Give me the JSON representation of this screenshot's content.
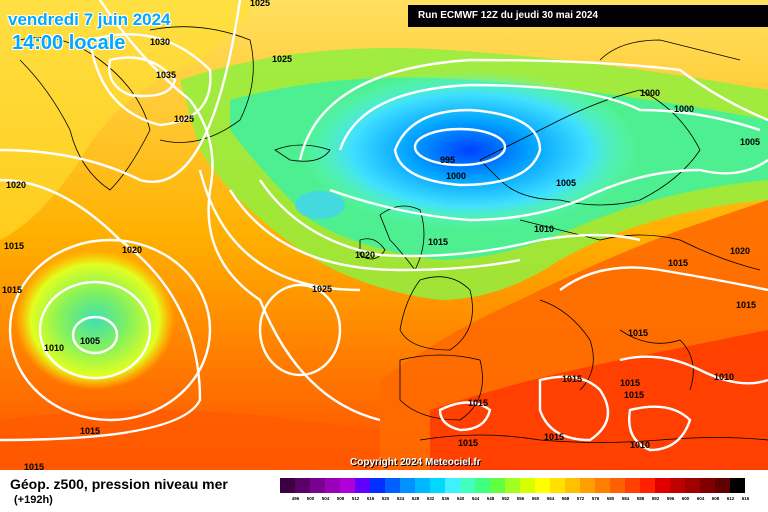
{
  "header": {
    "date": "vendredi 7 juin 2024",
    "time": "14:00 locale",
    "run": "Run ECMWF 12Z du jeudi 30 mai 2024"
  },
  "copyright": "Copyright 2024 Meteociel.fr",
  "footer": {
    "title": "Géop. z500, pression niveau mer",
    "subtitle": "(+192h)"
  },
  "legend": {
    "values": [
      "496",
      "500",
      "504",
      "508",
      "512",
      "516",
      "520",
      "524",
      "528",
      "532",
      "536",
      "540",
      "544",
      "548",
      "552",
      "556",
      "560",
      "564",
      "568",
      "572",
      "576",
      "580",
      "584",
      "588",
      "592",
      "596",
      "600",
      "604",
      "608",
      "612",
      "616"
    ],
    "colors": [
      "#3c0040",
      "#5a0068",
      "#7a0090",
      "#9a00b8",
      "#b000d8",
      "#6000ff",
      "#0030ff",
      "#0060ff",
      "#0090ff",
      "#00b8ff",
      "#00d8ff",
      "#40f0ff",
      "#40ffc0",
      "#40ff80",
      "#60ff40",
      "#a0ff20",
      "#d8ff00",
      "#ffff00",
      "#ffe000",
      "#ffc000",
      "#ffa000",
      "#ff8000",
      "#ff6000",
      "#ff4000",
      "#ff2000",
      "#e00000",
      "#c00000",
      "#a00000",
      "#800000",
      "#600000",
      "#000000"
    ]
  },
  "pressure_labels": [
    {
      "text": "1025"
    },
    {
      "text": "1030"
    },
    {
      "text": "1035"
    },
    {
      "text": "1025"
    },
    {
      "text": "1025"
    },
    {
      "text": "1020"
    },
    {
      "text": "1015"
    },
    {
      "text": "1015"
    },
    {
      "text": "1020"
    },
    {
      "text": "1010"
    },
    {
      "text": "1005"
    },
    {
      "text": "1015"
    },
    {
      "text": "1025"
    },
    {
      "text": "1020"
    },
    {
      "text": "1015"
    },
    {
      "text": "995"
    },
    {
      "text": "1000"
    },
    {
      "text": "1000"
    },
    {
      "text": "1000"
    },
    {
      "text": "1005"
    },
    {
      "text": "1005"
    },
    {
      "text": "1010"
    },
    {
      "text": "1020"
    },
    {
      "text": "1015"
    },
    {
      "text": "1015"
    },
    {
      "text": "1015"
    },
    {
      "text": "1015"
    },
    {
      "text": "1015"
    },
    {
      "text": "1015"
    },
    {
      "text": "1010"
    },
    {
      "text": "1015"
    },
    {
      "text": "1015"
    },
    {
      "text": "1010"
    },
    {
      "text": "1015"
    },
    {
      "text": "1015"
    }
  ],
  "colors": {
    "accent_title": "#00a8ff",
    "header_bg": "#000000"
  }
}
